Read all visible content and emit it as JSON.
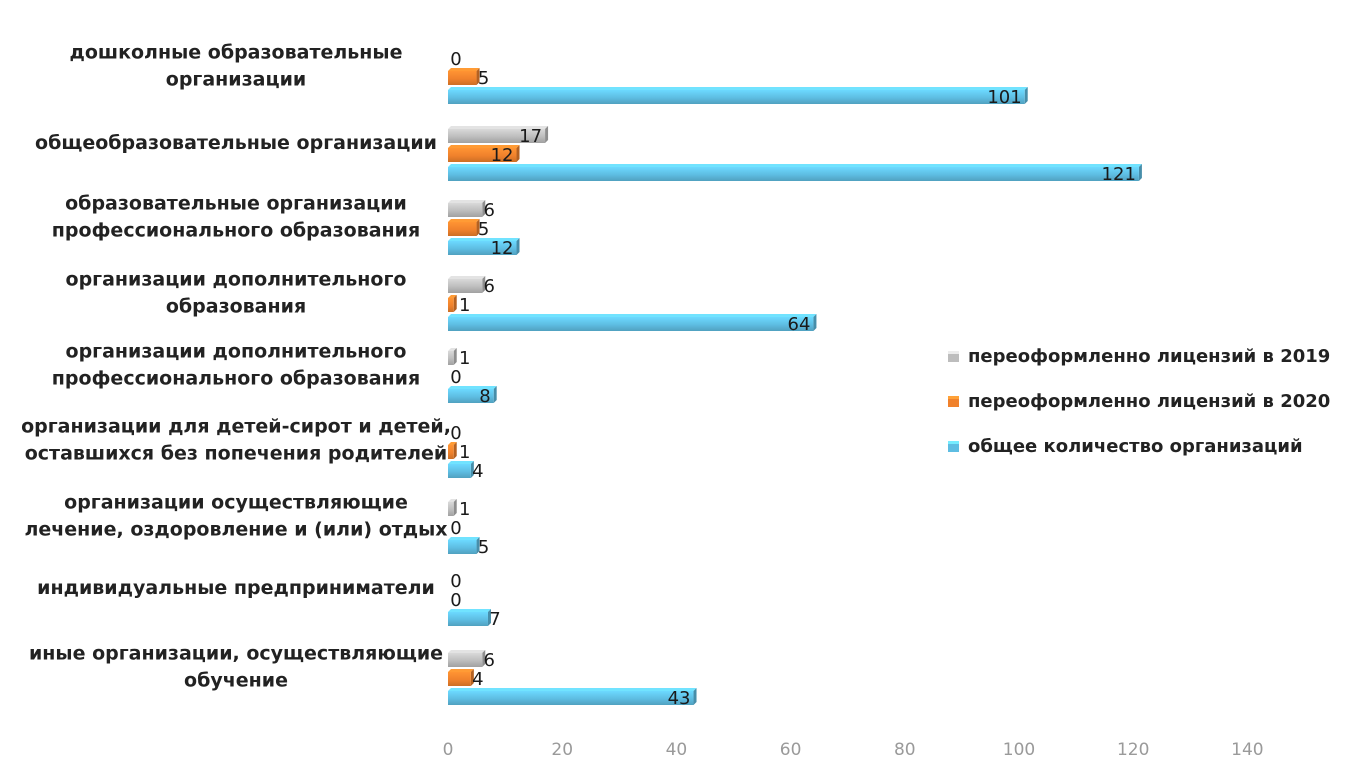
{
  "chart_data": {
    "type": "bar",
    "orientation": "horizontal",
    "title": "",
    "xlabel": "",
    "ylabel": "",
    "xlim": [
      0,
      140
    ],
    "x_ticks": [
      0,
      20,
      40,
      60,
      80,
      100,
      120,
      140
    ],
    "grid": false,
    "legend_position": "right",
    "categories": [
      "дошколные образовательные организации",
      "общеобразовательные организации",
      "образовательные организации профессионального образования",
      "организации дополнительного образования",
      "организации дополнительного профессионального образования",
      "организации для детей-сирот и детей, оставшихся без попечения родителей",
      "организации осуществляющие лечение, оздоровление и (или) отдых",
      "индивидуальные предприниматели",
      "иные организации, осуществляющие обучение"
    ],
    "category_label_lines": [
      [
        "дошколные образовательные",
        "организации"
      ],
      [
        "общеобразовательные организации"
      ],
      [
        "образовательные организации",
        "профессионального образования"
      ],
      [
        "организации дополнительного",
        "образования"
      ],
      [
        "организации дополнительного",
        "профессионального образования"
      ],
      [
        "организации для детей-сирот и детей,",
        "оставшихся без попечения родителей"
      ],
      [
        "организации осуществляющие",
        "лечение, оздоровление и (или) отдых"
      ],
      [
        "индивидуальные предприниматели"
      ],
      [
        "иные организации, осуществляющие",
        "обучение"
      ]
    ],
    "series": [
      {
        "name": "переоформленно лицензий в 2019",
        "color": "#bdbdbd",
        "values": [
          0,
          17,
          6,
          6,
          1,
          0,
          1,
          0,
          6
        ]
      },
      {
        "name": "переоформленно лицензий в 2020",
        "color": "#f0812c",
        "values": [
          5,
          12,
          5,
          1,
          0,
          1,
          0,
          0,
          4
        ]
      },
      {
        "name": "общее количество организаций",
        "color": "#5ebde2",
        "values": [
          101,
          121,
          12,
          64,
          8,
          4,
          5,
          7,
          43
        ]
      }
    ]
  }
}
